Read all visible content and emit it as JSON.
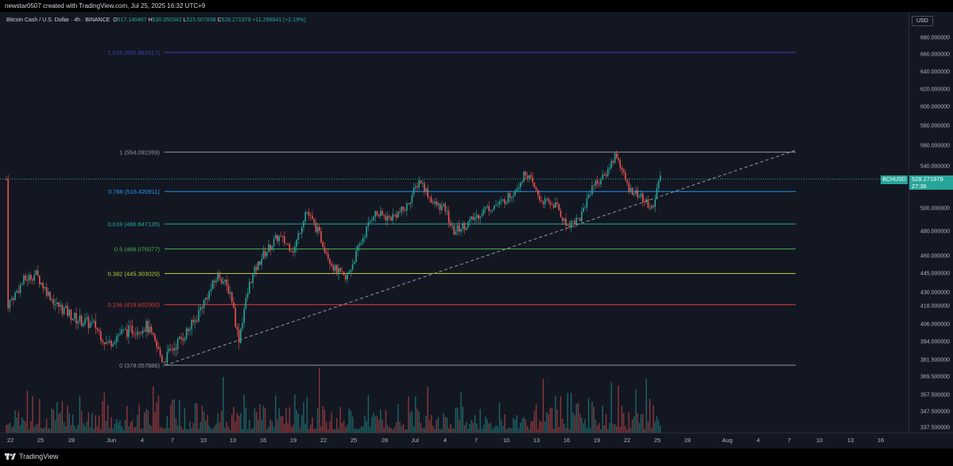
{
  "header": {
    "text": "newstar0507 created with TradingView.com, Jul 25, 2025 16:32 UTC+9"
  },
  "legend": {
    "symbol": "Bitcoin Cash / U.S. Dollar · 4h · BINANCE",
    "o_label": "O",
    "o_value": "517.140467",
    "h_label": "H",
    "h_value": "530.050342",
    "l_label": "L",
    "l_value": "515.507838",
    "c_label": "C",
    "c_value": "528.271979",
    "change": "+11.296841 (+2.19%)"
  },
  "price_scale": {
    "currency": "USD",
    "ticks": [
      {
        "label": "680.000000",
        "value": 680
      },
      {
        "label": "660.000000",
        "value": 660
      },
      {
        "label": "640.000000",
        "value": 640
      },
      {
        "label": "620.000000",
        "value": 620
      },
      {
        "label": "600.000000",
        "value": 600
      },
      {
        "label": "580.000000",
        "value": 580
      },
      {
        "label": "560.000000",
        "value": 560
      },
      {
        "label": "540.000000",
        "value": 540
      },
      {
        "label": "500.000000",
        "value": 500
      },
      {
        "label": "480.000000",
        "value": 480
      },
      {
        "label": "460.000000",
        "value": 460
      },
      {
        "label": "445.000000",
        "value": 445
      },
      {
        "label": "430.000000",
        "value": 430
      },
      {
        "label": "418.000000",
        "value": 418
      },
      {
        "label": "406.000000",
        "value": 406
      },
      {
        "label": "394.000000",
        "value": 394
      },
      {
        "label": "381.500000",
        "value": 381.5
      },
      {
        "label": "369.500000",
        "value": 369.5
      },
      {
        "label": "357.500000",
        "value": 357.5
      },
      {
        "label": "347.500000",
        "value": 347.5
      },
      {
        "label": "337.500000",
        "value": 337.5
      }
    ],
    "current_symbol": "BCHUSD",
    "current_price": "528.271979",
    "countdown": "27:36"
  },
  "time_scale": {
    "ticks": [
      "22",
      "25",
      "28",
      "Jun",
      "4",
      "7",
      "10",
      "13",
      "16",
      "19",
      "22",
      "25",
      "28",
      "Jul",
      "4",
      "7",
      "10",
      "13",
      "16",
      "19",
      "22",
      "25",
      "28",
      "Aug",
      "4",
      "7",
      "10",
      "13",
      "16"
    ]
  },
  "fib_levels": [
    {
      "ratio": "1.618",
      "price": "662.881517",
      "value": 662.881517,
      "color": "#3f3fb2"
    },
    {
      "ratio": "1",
      "price": "554.092269",
      "value": 554.092269,
      "color": "#9598a1"
    },
    {
      "ratio": "0.786",
      "price": "516.420911",
      "value": 516.420911,
      "color": "#2196f3"
    },
    {
      "ratio": "0.618",
      "price": "486.847135",
      "value": 486.847135,
      "color": "#26a69a"
    },
    {
      "ratio": "0.5",
      "price": "466.075077",
      "value": 466.075077,
      "color": "#4caf50"
    },
    {
      "ratio": "0.382",
      "price": "445.303020",
      "value": 445.30302,
      "color": "#c0ca33"
    },
    {
      "ratio": "0.236",
      "price": "419.602000",
      "value": 419.602,
      "color": "#e53935"
    },
    {
      "ratio": "0",
      "price": "378.057886",
      "value": 378.057886,
      "color": "#9598a1"
    }
  ],
  "colors": {
    "up": "#26a69a",
    "down": "#ef5350",
    "background": "#131722"
  },
  "footer": {
    "brand": "TradingView"
  }
}
